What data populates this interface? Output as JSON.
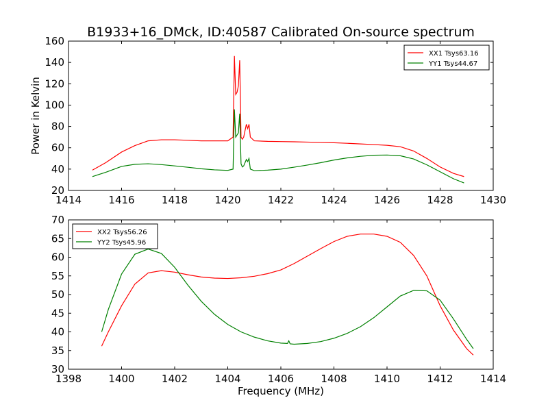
{
  "figure": {
    "title": "B1933+16_DMck, ID:40587 Calibrated On-source spectrum"
  },
  "chart_data": [
    {
      "type": "line",
      "title": "B1933+16_DMck, ID:40587 Calibrated On-source spectrum",
      "xlabel": "",
      "ylabel": "Power in Kelvin",
      "xlim": [
        1414,
        1430
      ],
      "ylim": [
        20,
        160
      ],
      "xticks": [
        1414,
        1416,
        1418,
        1420,
        1422,
        1424,
        1426,
        1428,
        1430
      ],
      "yticks": [
        20,
        40,
        60,
        80,
        100,
        120,
        140,
        160
      ],
      "grid": false,
      "legend_position": "top-right",
      "series": [
        {
          "name": "XX1 Tsys63.16",
          "color": "#ff0000",
          "x": [
            1414.9,
            1415.4,
            1416.0,
            1416.5,
            1417.0,
            1417.5,
            1418.0,
            1418.5,
            1419.0,
            1419.5,
            1420.0,
            1420.2,
            1420.25,
            1420.3,
            1420.35,
            1420.4,
            1420.45,
            1420.5,
            1420.55,
            1420.6,
            1420.7,
            1420.75,
            1420.8,
            1420.85,
            1421.0,
            1421.5,
            1422.0,
            1422.5,
            1423.0,
            1423.5,
            1424.0,
            1424.5,
            1425.0,
            1425.5,
            1426.0,
            1426.5,
            1427.0,
            1427.5,
            1428.0,
            1428.5,
            1428.9
          ],
          "y": [
            39,
            46,
            56,
            62,
            66.5,
            67.5,
            67.5,
            67,
            66.5,
            66.5,
            66.5,
            70,
            146,
            110,
            112,
            118,
            142,
            70,
            68,
            70,
            82,
            78,
            82,
            70,
            66.5,
            66,
            65.8,
            65.6,
            65.3,
            65,
            64.7,
            64.2,
            63.6,
            63,
            62.3,
            61,
            57,
            50,
            42,
            36,
            33
          ]
        },
        {
          "name": "YY1 Tsys44.67",
          "color": "#008000",
          "x": [
            1414.9,
            1415.4,
            1416.0,
            1416.5,
            1417.0,
            1417.5,
            1418.0,
            1418.5,
            1419.0,
            1419.5,
            1420.0,
            1420.2,
            1420.25,
            1420.3,
            1420.35,
            1420.4,
            1420.45,
            1420.5,
            1420.55,
            1420.6,
            1420.7,
            1420.75,
            1420.8,
            1420.85,
            1421.0,
            1421.5,
            1422.0,
            1422.5,
            1423.0,
            1423.5,
            1424.0,
            1424.5,
            1425.0,
            1425.5,
            1426.0,
            1426.5,
            1427.0,
            1427.5,
            1428.0,
            1428.5,
            1428.9
          ],
          "y": [
            33,
            37,
            42.5,
            44.5,
            45,
            44.2,
            43,
            41.7,
            40.3,
            39.3,
            38.8,
            40,
            96,
            70,
            72,
            74,
            92,
            45,
            42,
            43,
            49,
            47,
            50,
            40,
            38.5,
            39,
            40,
            41.8,
            43.8,
            46,
            48.5,
            50.5,
            52,
            53,
            53.2,
            52.5,
            49.5,
            44,
            37.5,
            31,
            27
          ]
        }
      ]
    },
    {
      "type": "line",
      "title": "",
      "xlabel": "Frequency (MHz)",
      "ylabel": "",
      "xlim": [
        1398,
        1414
      ],
      "ylim": [
        30,
        70
      ],
      "xticks": [
        1398,
        1400,
        1402,
        1404,
        1406,
        1408,
        1410,
        1412,
        1414
      ],
      "yticks": [
        30,
        35,
        40,
        45,
        50,
        55,
        60,
        65,
        70
      ],
      "grid": false,
      "legend_position": "top-left",
      "series": [
        {
          "name": "XX2 Tsys56.26",
          "color": "#ff0000",
          "x": [
            1399.25,
            1399.5,
            1400.0,
            1400.5,
            1401.0,
            1401.5,
            1402.0,
            1402.5,
            1403.0,
            1403.5,
            1404.0,
            1404.5,
            1405.0,
            1405.5,
            1406.0,
            1406.5,
            1407.0,
            1407.5,
            1408.0,
            1408.5,
            1409.0,
            1409.5,
            1410.0,
            1410.5,
            1411.0,
            1411.5,
            1412.0,
            1412.5,
            1413.0,
            1413.25
          ],
          "y": [
            36.2,
            40,
            47,
            52.8,
            55.8,
            56.4,
            56,
            55.3,
            54.7,
            54.4,
            54.3,
            54.5,
            54.9,
            55.6,
            56.6,
            58.3,
            60.3,
            62.3,
            64.2,
            65.6,
            66.2,
            66.2,
            65.6,
            64,
            60.5,
            55,
            47,
            40.5,
            35.5,
            33.8
          ]
        },
        {
          "name": "YY2 Tsys45.96",
          "color": "#008000",
          "x": [
            1399.25,
            1399.5,
            1400.0,
            1400.5,
            1401.0,
            1401.5,
            1402.0,
            1402.5,
            1403.0,
            1403.5,
            1404.0,
            1404.5,
            1405.0,
            1405.5,
            1406.0,
            1406.25,
            1406.3,
            1406.35,
            1406.5,
            1407.0,
            1407.5,
            1408.0,
            1408.5,
            1409.0,
            1409.5,
            1410.0,
            1410.5,
            1411.0,
            1411.5,
            1412.0,
            1412.5,
            1413.0,
            1413.25
          ],
          "y": [
            40,
            46,
            55.5,
            60.8,
            62.2,
            61,
            57.3,
            52.5,
            48.2,
            44.7,
            42,
            40,
            38.6,
            37.6,
            37,
            36.9,
            37.6,
            36.8,
            36.7,
            36.9,
            37.4,
            38.3,
            39.6,
            41.4,
            43.8,
            46.7,
            49.6,
            51.1,
            51,
            48.5,
            43.5,
            38,
            35.5
          ]
        }
      ]
    }
  ]
}
